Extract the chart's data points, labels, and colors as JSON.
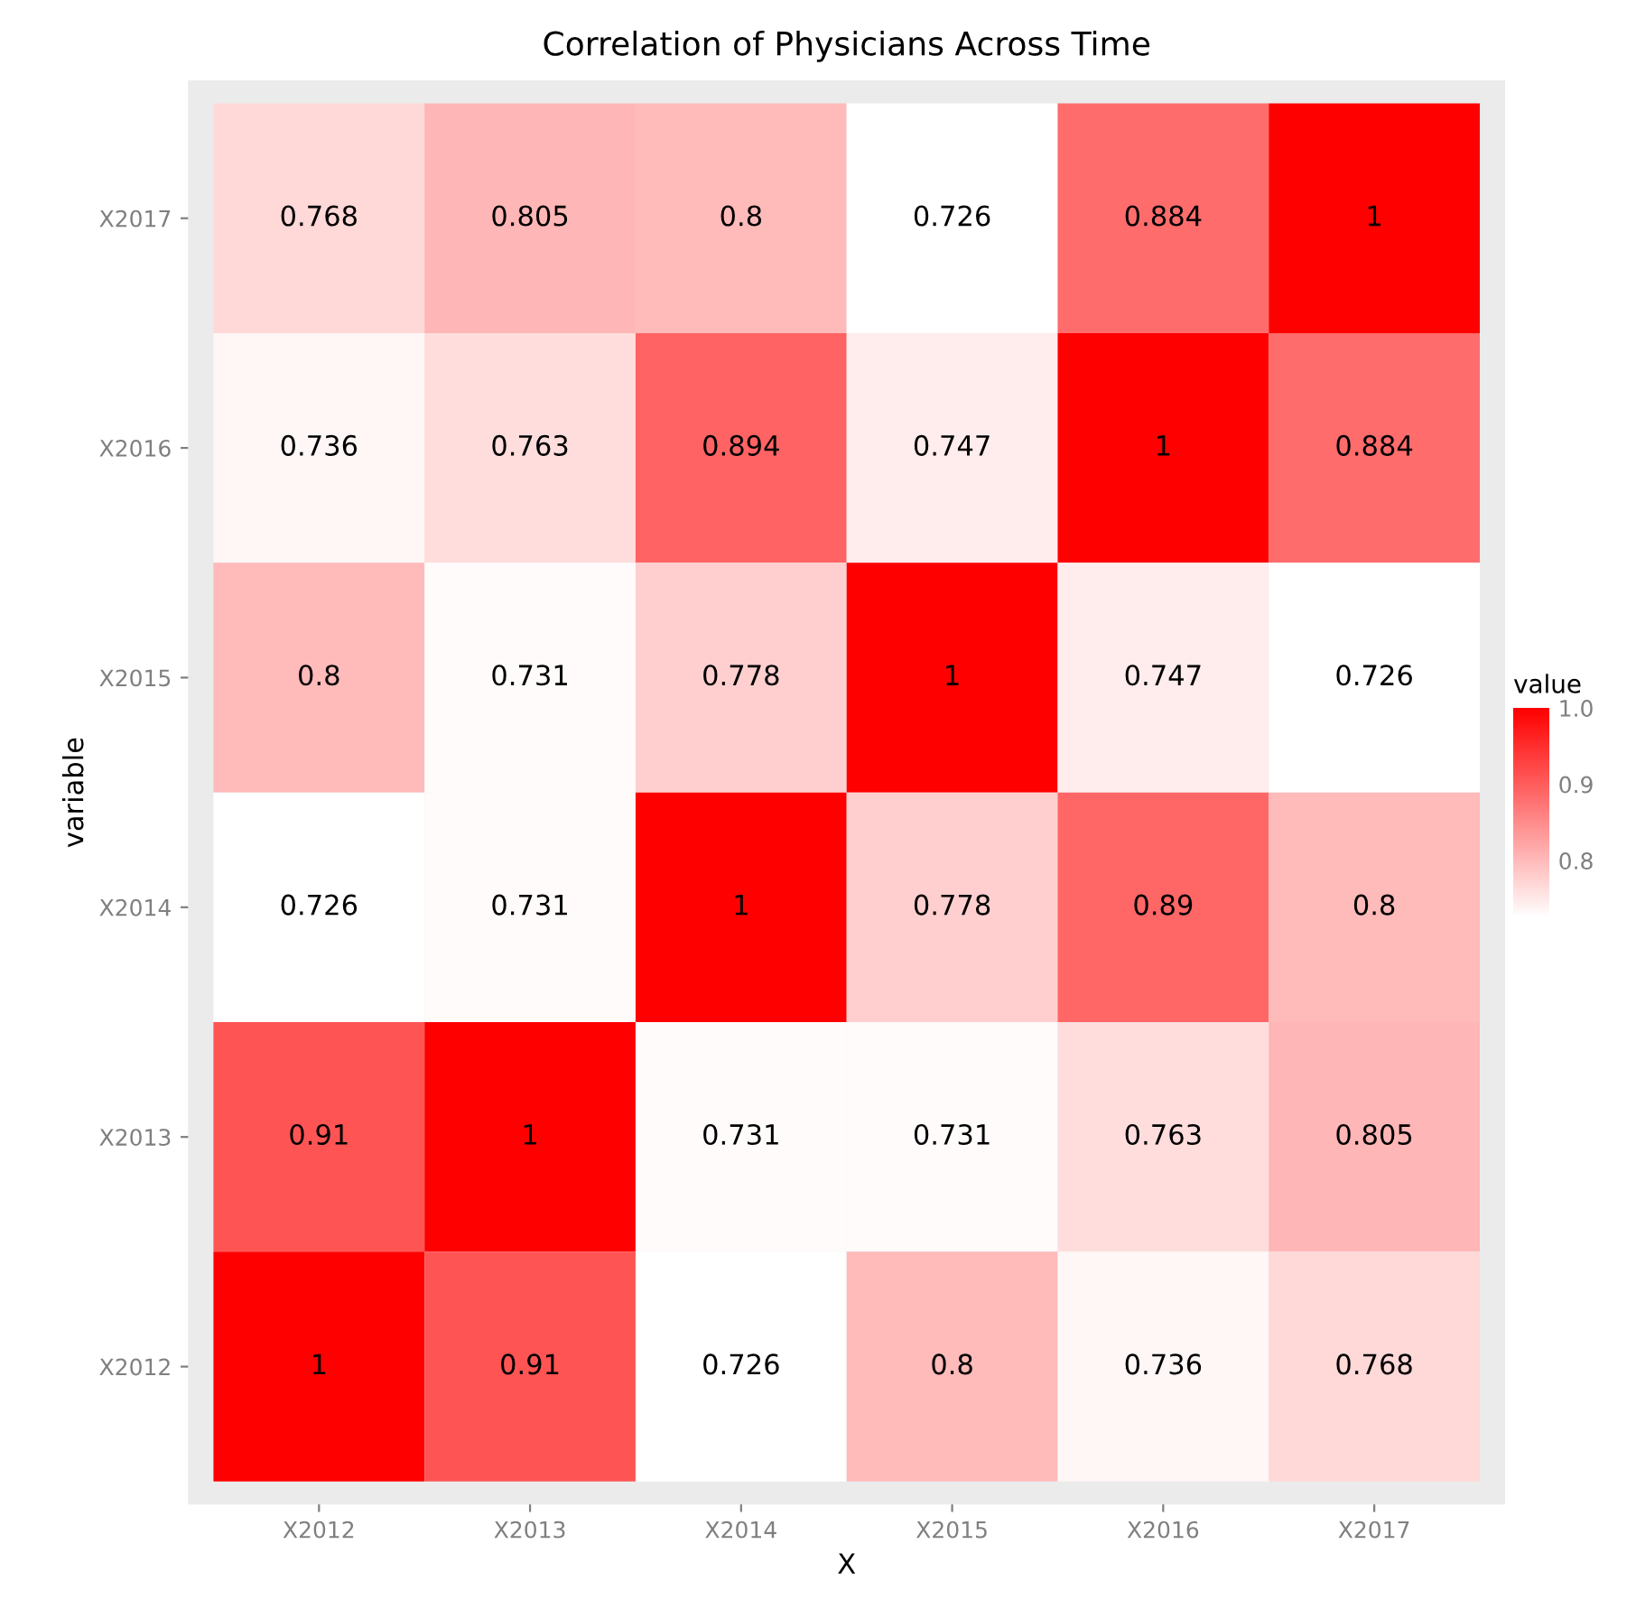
{
  "chart_data": {
    "type": "heatmap",
    "title": "Correlation of Physicians Across Time",
    "xlabel": "X",
    "ylabel": "variable",
    "clabel": "value",
    "categories": [
      "X2012",
      "X2013",
      "X2014",
      "X2015",
      "X2016",
      "X2017"
    ],
    "y_categories": [
      "X2017",
      "X2016",
      "X2015",
      "X2014",
      "X2013",
      "X2012"
    ],
    "cells": [
      [
        0.768,
        0.805,
        0.8,
        0.726,
        0.884,
        1
      ],
      [
        0.736,
        0.763,
        0.894,
        0.747,
        1,
        0.884
      ],
      [
        0.8,
        0.731,
        0.778,
        1,
        0.747,
        0.726
      ],
      [
        0.726,
        0.731,
        1,
        0.778,
        0.89,
        0.8
      ],
      [
        0.91,
        1,
        0.731,
        0.731,
        0.763,
        0.805
      ],
      [
        1,
        0.91,
        0.726,
        0.8,
        0.736,
        0.768
      ]
    ],
    "data_labels": true,
    "colors": [
      "#ffffff",
      "#ff0000"
    ],
    "clim": [
      0.726,
      1
    ],
    "cticks": [
      0.8,
      0.9,
      {
        "value": 1,
        "label": "1.0"
      }
    ]
  }
}
